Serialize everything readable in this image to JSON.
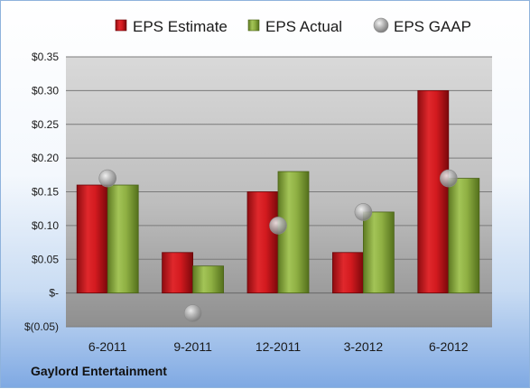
{
  "company": "Gaylord Entertainment",
  "chart_data": {
    "type": "bar",
    "categories": [
      "6-2011",
      "9-2011",
      "12-2011",
      "3-2012",
      "6-2012"
    ],
    "series": [
      {
        "name": "EPS Estimate",
        "kind": "bar",
        "color": "#c8141b",
        "values": [
          0.16,
          0.06,
          0.15,
          0.06,
          0.3
        ]
      },
      {
        "name": "EPS Actual",
        "kind": "bar",
        "color": "#86a83c",
        "values": [
          0.16,
          0.04,
          0.18,
          0.12,
          0.17
        ]
      },
      {
        "name": "EPS GAAP",
        "kind": "marker",
        "color": "#a9a9a9",
        "values": [
          0.17,
          -0.03,
          0.1,
          0.12,
          0.17
        ]
      }
    ],
    "yticks": [
      {
        "value": 0.35,
        "label": "$0.35"
      },
      {
        "value": 0.3,
        "label": "$0.30"
      },
      {
        "value": 0.25,
        "label": "$0.25"
      },
      {
        "value": 0.2,
        "label": "$0.20"
      },
      {
        "value": 0.15,
        "label": "$0.15"
      },
      {
        "value": 0.1,
        "label": "$0.10"
      },
      {
        "value": 0.05,
        "label": "$0.05"
      },
      {
        "value": 0.0,
        "label": "$-"
      },
      {
        "value": -0.05,
        "label": "$(0.05)"
      }
    ],
    "ylim": [
      -0.05,
      0.35
    ],
    "grid": true,
    "legend_position": "top"
  }
}
